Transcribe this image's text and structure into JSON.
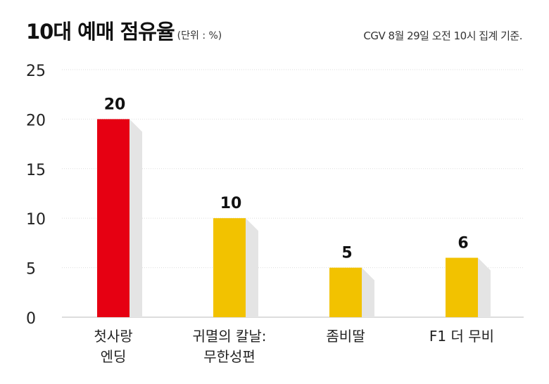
{
  "chart_data": {
    "type": "bar",
    "title": "10대 예매 점유율",
    "unit_note": "(단위 : %)",
    "source_note": "CGV 8월 29일 오전 10시 집계 기준.",
    "categories": [
      [
        "첫사랑",
        "엔딩"
      ],
      [
        "귀멸의 칼날:",
        "무한성편"
      ],
      [
        "좀비딸"
      ],
      [
        "F1 더 무비"
      ]
    ],
    "values": [
      20,
      10,
      5,
      6
    ],
    "value_labels": [
      "20",
      "10",
      "5",
      "6"
    ],
    "yticks": [
      "0",
      "5",
      "10",
      "15",
      "20",
      "25"
    ],
    "ylim": [
      0,
      25
    ],
    "grid": true,
    "colors": {
      "highlight": "#e60012",
      "default": "#f2c200",
      "shadow": "#e4e4e4",
      "grid": "#dddddd",
      "axis": "#bbbbbb"
    },
    "bar_colors": [
      "highlight",
      "default",
      "default",
      "default"
    ]
  }
}
